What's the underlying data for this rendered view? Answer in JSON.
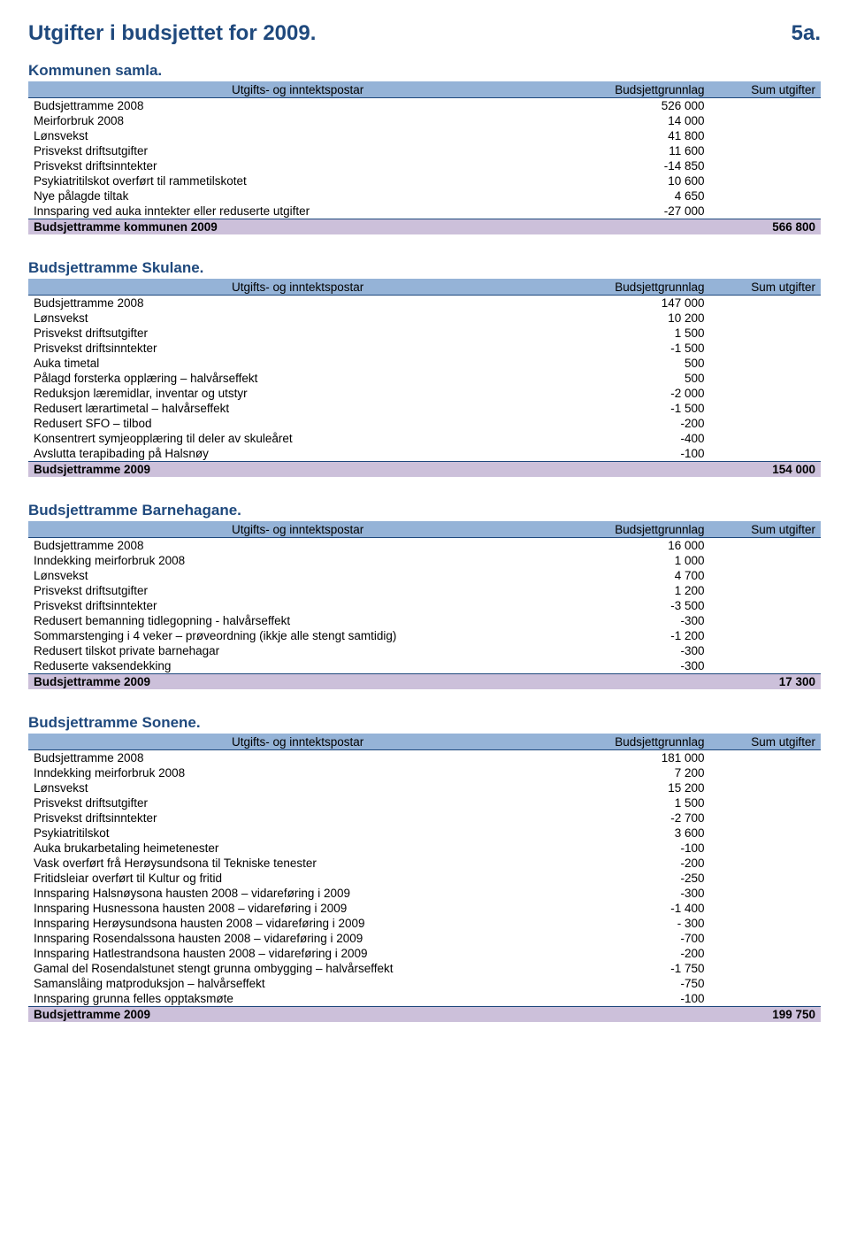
{
  "page": {
    "title": "Utgifter i budsjettet for 2009.",
    "number": "5a."
  },
  "columns": {
    "col1": "Utgifts- og inntektspostar",
    "col2": "Budsjettgrunnlag",
    "col3": "Sum utgifter"
  },
  "sections": [
    {
      "title": "Kommunen samla.",
      "rows": [
        {
          "label": "Budsjettramme 2008",
          "value": "526 000"
        },
        {
          "label": "Meirforbruk 2008",
          "value": "14 000"
        },
        {
          "label": "Lønsvekst",
          "value": "41 800"
        },
        {
          "label": "Prisvekst driftsutgifter",
          "value": "11 600"
        },
        {
          "label": "Prisvekst driftsinntekter",
          "value": "-14 850"
        },
        {
          "label": "Psykiatritilskot overført til rammetilskotet",
          "value": "10 600"
        },
        {
          "label": "Nye pålagde tiltak",
          "value": "4 650"
        },
        {
          "label": "Innsparing ved auka inntekter eller reduserte utgifter",
          "value": "-27 000"
        }
      ],
      "total": {
        "label": "Budsjettramme kommunen 2009",
        "value": "566 800"
      }
    },
    {
      "title": "Budsjettramme Skulane.",
      "rows": [
        {
          "label": "Budsjettramme 2008",
          "value": "147 000"
        },
        {
          "label": "Lønsvekst",
          "value": "10 200"
        },
        {
          "label": "Prisvekst driftsutgifter",
          "value": "1 500"
        },
        {
          "label": "Prisvekst driftsinntekter",
          "value": "-1 500"
        },
        {
          "label": "Auka timetal",
          "value": "500"
        },
        {
          "label": "Pålagd forsterka opplæring – halvårseffekt",
          "value": "500"
        },
        {
          "label": "Reduksjon læremidlar, inventar og utstyr",
          "value": "-2 000"
        },
        {
          "label": "Redusert lærartimetal – halvårseffekt",
          "value": "-1 500"
        },
        {
          "label": "Redusert SFO – tilbod",
          "value": "-200"
        },
        {
          "label": "Konsentrert symjeopplæring til deler av skuleåret",
          "value": "-400"
        },
        {
          "label": "Avslutta terapibading på Halsnøy",
          "value": "-100"
        }
      ],
      "total": {
        "label": "Budsjettramme 2009",
        "value": "154 000"
      }
    },
    {
      "title": "Budsjettramme Barnehagane.",
      "rows": [
        {
          "label": "Budsjettramme 2008",
          "value": "16 000"
        },
        {
          "label": "Inndekking meirforbruk 2008",
          "value": "1 000"
        },
        {
          "label": "Lønsvekst",
          "value": "4 700"
        },
        {
          "label": "Prisvekst driftsutgifter",
          "value": "1 200"
        },
        {
          "label": "Prisvekst driftsinntekter",
          "value": "-3 500"
        },
        {
          "label": "Redusert bemanning tidlegopning - halvårseffekt",
          "value": "-300"
        },
        {
          "label": "Sommarstenging i 4 veker – prøveordning (ikkje alle stengt samtidig)",
          "value": "-1 200"
        },
        {
          "label": "Redusert tilskot private barnehagar",
          "value": "-300"
        },
        {
          "label": "Reduserte vaksendekking",
          "value": "-300"
        }
      ],
      "total": {
        "label": "Budsjettramme 2009",
        "value": "17 300"
      }
    },
    {
      "title": "Budsjettramme Sonene.",
      "rows": [
        {
          "label": "Budsjettramme 2008",
          "value": "181 000"
        },
        {
          "label": "Inndekking meirforbruk 2008",
          "value": "7 200"
        },
        {
          "label": "Lønsvekst",
          "value": "15 200"
        },
        {
          "label": "Prisvekst driftsutgifter",
          "value": "1 500"
        },
        {
          "label": "Prisvekst driftsinntekter",
          "value": "-2 700"
        },
        {
          "label": "Psykiatritilskot",
          "value": "3 600"
        },
        {
          "label": "Auka brukarbetaling heimetenester",
          "value": "-100"
        },
        {
          "label": "Vask overført frå Herøysundsona til Tekniske tenester",
          "value": "-200"
        },
        {
          "label": "Fritidsleiar overført til Kultur og fritid",
          "value": "-250"
        },
        {
          "label": "Innsparing Halsnøysona hausten 2008 – vidareføring i 2009",
          "value": "-300"
        },
        {
          "label": "Innsparing Husnessona hausten 2008 – vidareføring i 2009",
          "value": "-1 400"
        },
        {
          "label": "Innsparing Herøysundsona hausten 2008 – vidareføring i 2009",
          "value": "- 300"
        },
        {
          "label": "Innsparing Rosendalssona hausten 2008 – vidareføring i 2009",
          "value": "-700"
        },
        {
          "label": "Innsparing Hatlestrandsona hausten 2008 – vidareføring i 2009",
          "value": "-200"
        },
        {
          "label": "Gamal del Rosendalstunet stengt grunna ombygging – halvårseffekt",
          "value": "-1 750"
        },
        {
          "label": "Samanslåing matproduksjon – halvårseffekt",
          "value": "-750"
        },
        {
          "label": "Innsparing grunna felles opptaksmøte",
          "value": "-100"
        }
      ],
      "total": {
        "label": "Budsjettramme 2009",
        "value": "199 750"
      }
    }
  ],
  "colors": {
    "heading": "#1f497d",
    "header_bg": "#95b3d7",
    "total_bg": "#ccc0da",
    "rule": "#1f497d"
  }
}
